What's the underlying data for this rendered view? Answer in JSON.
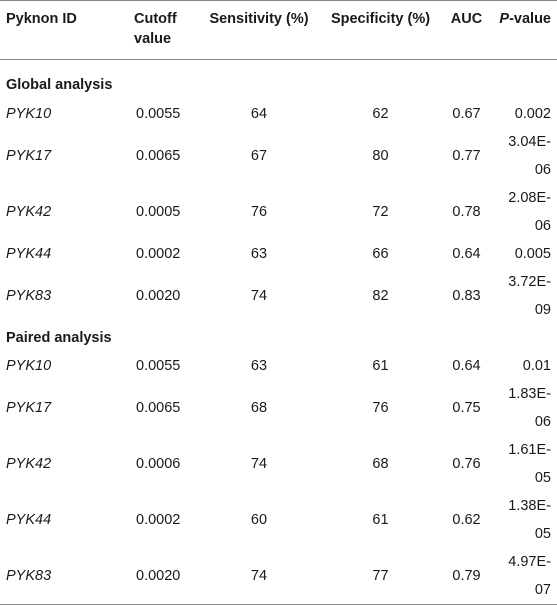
{
  "headers": {
    "pyknon_id": "Pyknon ID",
    "cutoff_line1": "Cutoff",
    "cutoff_line2": "value",
    "sensitivity": "Sensitivity (%)",
    "specificity": "Specificity (%)",
    "auc": "AUC",
    "pvalue_italic": "P",
    "pvalue_rest": "-value"
  },
  "sections": [
    {
      "title": "Global analysis",
      "rows": [
        {
          "id": "PYK10",
          "cutoff": "0.0055",
          "sensitivity": "64",
          "specificity": "62",
          "auc": "0.67",
          "pvalue": "0.002"
        },
        {
          "id": "PYK17",
          "cutoff": "0.0065",
          "sensitivity": "67",
          "specificity": "80",
          "auc": "0.77",
          "pvalue": "3.04E-06"
        },
        {
          "id": "PYK42",
          "cutoff": "0.0005",
          "sensitivity": "76",
          "specificity": "72",
          "auc": "0.78",
          "pvalue": "2.08E-06"
        },
        {
          "id": "PYK44",
          "cutoff": "0.0002",
          "sensitivity": "63",
          "specificity": "66",
          "auc": "0.64",
          "pvalue": "0.005"
        },
        {
          "id": "PYK83",
          "cutoff": "0.0020",
          "sensitivity": "74",
          "specificity": "82",
          "auc": "0.83",
          "pvalue": "3.72E-09"
        }
      ]
    },
    {
      "title": "Paired analysis",
      "rows": [
        {
          "id": "PYK10",
          "cutoff": "0.0055",
          "sensitivity": "63",
          "specificity": "61",
          "auc": "0.64",
          "pvalue": "0.01"
        },
        {
          "id": "PYK17",
          "cutoff": "0.0065",
          "sensitivity": "68",
          "specificity": "76",
          "auc": "0.75",
          "pvalue": "1.83E-06"
        },
        {
          "id": "PYK42",
          "cutoff": "0.0006",
          "sensitivity": "74",
          "specificity": "68",
          "auc": "0.76",
          "pvalue": "1.61E-05"
        },
        {
          "id": "PYK44",
          "cutoff": "0.0002",
          "sensitivity": "60",
          "specificity": "61",
          "auc": "0.62",
          "pvalue": "1.38E-05"
        },
        {
          "id": "PYK83",
          "cutoff": "0.0020",
          "sensitivity": "74",
          "specificity": "77",
          "auc": "0.79",
          "pvalue": "4.97E-07"
        }
      ]
    }
  ]
}
